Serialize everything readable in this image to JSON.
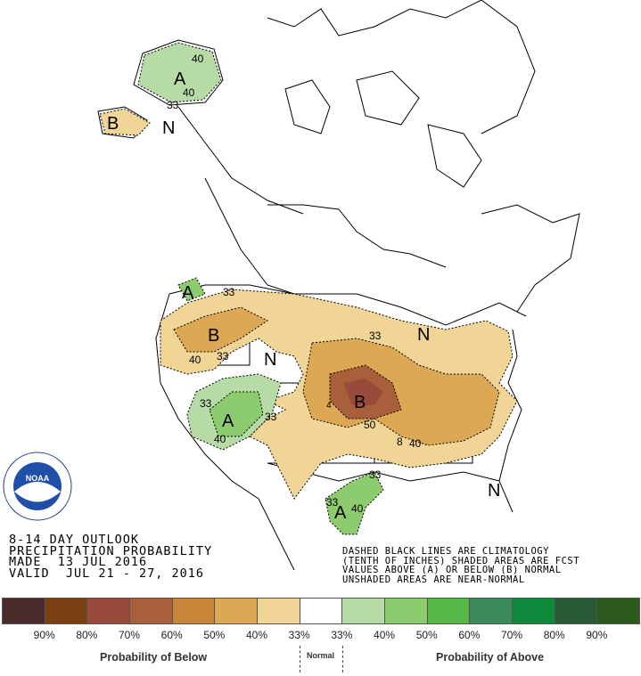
{
  "header": {
    "line1": "8-14 DAY OUTLOOK",
    "line2": "PRECIPITATION PROBABILITY",
    "line3": "MADE  13 JUL 2016",
    "line4": "VALID  JUL 21 - 27, 2016"
  },
  "note": {
    "line1": "DASHED BLACK LINES ARE CLIMATOLOGY",
    "line2": "(TENTH OF INCHES) SHADED AREAS ARE FCST",
    "line3": "VALUES ABOVE (A) OR BELOW (B) NORMAL",
    "line4": "UNSHADED AREAS ARE NEAR-NORMAL"
  },
  "legend": {
    "colors": [
      "#4a2c2c",
      "#7a3f10",
      "#9a4a3a",
      "#a8603a",
      "#c8853a",
      "#dca853",
      "#f0d596",
      "#ffffff",
      "#b6dba6",
      "#8ccb6e",
      "#55b848",
      "#3d8a5a",
      "#0f8a3c",
      "#275a35",
      "#2c5a1c"
    ],
    "ticks": [
      "90%",
      "80%",
      "70%",
      "60%",
      "50%",
      "40%",
      "33%",
      "33%",
      "40%",
      "50%",
      "60%",
      "70%",
      "80%",
      "90%"
    ],
    "below_label": "Probability of Below",
    "normal_label": "Normal",
    "above_label": "Probability of Above"
  },
  "map": {
    "labels": {
      "alaska_a": "A",
      "alaska_40a": "40",
      "alaska_40b": "40",
      "alaska_33": "33",
      "alaska_b": "B",
      "alaska_n": "N",
      "wa_a": "A",
      "nw_33": "33",
      "nw_b": "B",
      "nw_40": "40",
      "nw_33b": "33",
      "great_basin_n": "N",
      "sw_a": "A",
      "sw_33a": "33",
      "sw_40": "40",
      "sw_33b": "33",
      "plains_b": "B",
      "plains_33": "33",
      "plains_50": "50",
      "plains_4": "4",
      "se_40": "40",
      "se_8": "8",
      "gl_n": "N",
      "gl_33": "33",
      "fl_n": "N",
      "tx_a": "A",
      "tx_33": "33",
      "tx_40": "40",
      "tx_33b": "33"
    }
  }
}
